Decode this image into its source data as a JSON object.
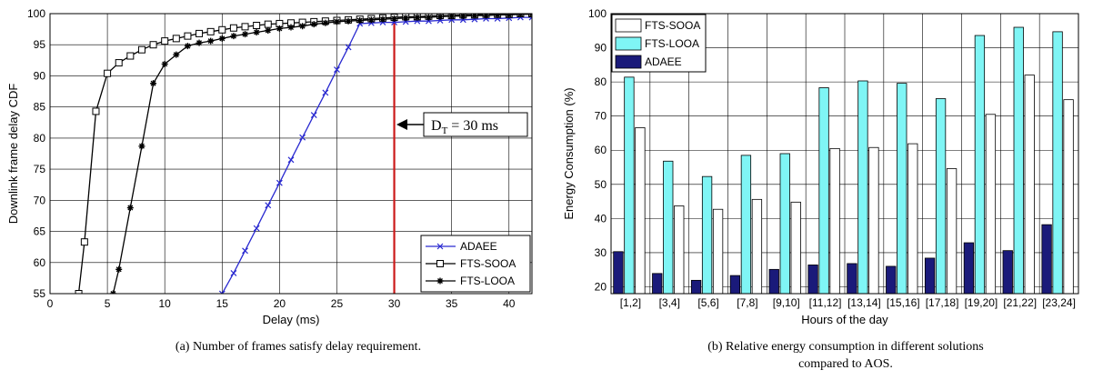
{
  "chart_data": [
    {
      "type": "line",
      "xlabel": "Delay (ms)",
      "ylabel": "Downlink frame delay CDF",
      "xlim": [
        0,
        42
      ],
      "ylim": [
        55,
        100
      ],
      "xticks": [
        0,
        5,
        10,
        15,
        20,
        25,
        30,
        35,
        40
      ],
      "yticks": [
        55,
        60,
        65,
        70,
        75,
        80,
        85,
        90,
        95,
        100
      ],
      "grid": true,
      "legend": "bottom-right",
      "caption": "(a) Number of frames satisfy delay requirement.",
      "annotation": {
        "main": "D",
        "sub": "T",
        "rest": " = 30 ms",
        "x": 30
      },
      "series": [
        {
          "name": "ADAEE",
          "color": "#2a2ad0",
          "marker": "x",
          "x": [
            15,
            16,
            17,
            18,
            19,
            20,
            21,
            22,
            23,
            24,
            25,
            26,
            27,
            28,
            29,
            30,
            31,
            32,
            33,
            34,
            35,
            36,
            37,
            38,
            39,
            40,
            41,
            42
          ],
          "y": [
            55.0,
            58.3,
            61.9,
            65.5,
            69.2,
            72.8,
            76.5,
            80.1,
            83.7,
            87.3,
            91.0,
            94.6,
            98.4,
            98.5,
            98.6,
            98.6,
            98.7,
            98.8,
            98.8,
            98.9,
            99.0,
            99.0,
            99.1,
            99.2,
            99.2,
            99.3,
            99.4,
            99.4
          ]
        },
        {
          "name": "FTS-SOOA",
          "color": "#000000",
          "marker": "square",
          "x": [
            2.5,
            3,
            4,
            5,
            6,
            7,
            8,
            9,
            10,
            11,
            12,
            13,
            14,
            15,
            16,
            17,
            18,
            19,
            20,
            21,
            22,
            23,
            24,
            25,
            26,
            27,
            28,
            29,
            30,
            31,
            32,
            33,
            34,
            35,
            36,
            37,
            38,
            39,
            40,
            41,
            42
          ],
          "y": [
            55.0,
            63.3,
            84.3,
            90.4,
            92.1,
            93.2,
            94.2,
            95.0,
            95.6,
            96.0,
            96.4,
            96.8,
            97.1,
            97.4,
            97.7,
            97.9,
            98.1,
            98.3,
            98.4,
            98.5,
            98.6,
            98.7,
            98.8,
            98.9,
            99.0,
            99.1,
            99.2,
            99.3,
            99.4,
            99.5,
            99.5,
            99.6,
            99.7,
            99.7,
            99.8,
            99.8,
            99.9,
            99.9,
            99.9,
            100.0,
            100.0
          ]
        },
        {
          "name": "FTS-LOOA",
          "color": "#000000",
          "marker": "star",
          "x": [
            5.5,
            6,
            7,
            8,
            9,
            10,
            11,
            12,
            13,
            14,
            15,
            16,
            17,
            18,
            19,
            20,
            21,
            22,
            23,
            24,
            25,
            26,
            27,
            28,
            29,
            30,
            31,
            32,
            33,
            34,
            35,
            36,
            37,
            38,
            39,
            40,
            41,
            42
          ],
          "y": [
            55.0,
            58.9,
            68.8,
            78.7,
            88.8,
            91.9,
            93.4,
            94.8,
            95.3,
            95.6,
            96.0,
            96.4,
            96.7,
            97.0,
            97.3,
            97.6,
            97.8,
            98.0,
            98.3,
            98.5,
            98.7,
            98.8,
            98.9,
            99.0,
            99.1,
            99.2,
            99.3,
            99.4,
            99.4,
            99.5,
            99.6,
            99.6,
            99.7,
            99.7,
            99.8,
            99.8,
            99.9,
            99.9
          ]
        }
      ]
    },
    {
      "type": "bar",
      "xlabel": "Hours of the day",
      "ylabel": "Energy Consumption (%)",
      "ylim": [
        18,
        100
      ],
      "yticks": [
        20,
        30,
        40,
        50,
        60,
        70,
        80,
        90,
        100
      ],
      "grid": true,
      "legend": "top-left",
      "caption_lines": [
        "(b)  Relative energy consumption in different solutions",
        "compared to AOS."
      ],
      "categories": [
        "[1,2]",
        "[3,4]",
        "[5,6]",
        "[7,8]",
        "[9,10]",
        "[11,12]",
        "[13,14]",
        "[15,16]",
        "[17,18]",
        "[19,20]",
        "[21,22]",
        "[23,24]"
      ],
      "legend_order": [
        "FTS-SOOA",
        "FTS-LOOA",
        "ADAEE"
      ],
      "series": [
        {
          "name": "ADAEE",
          "color": "#1a1a7a",
          "values": [
            30.3,
            23.9,
            21.9,
            23.3,
            25.1,
            26.4,
            26.8,
            26.0,
            28.4,
            32.9,
            30.6,
            38.2
          ]
        },
        {
          "name": "FTS-LOOA",
          "color": "#7ff5f5",
          "values": [
            81.4,
            56.8,
            52.3,
            58.5,
            59.0,
            78.3,
            80.3,
            79.6,
            75.1,
            93.6,
            96.0,
            94.7
          ]
        },
        {
          "name": "FTS-SOOA",
          "color": "#ffffff",
          "values": [
            66.6,
            43.7,
            42.7,
            45.6,
            44.8,
            60.5,
            60.8,
            61.9,
            54.6,
            70.5,
            82.0,
            74.8
          ]
        }
      ]
    }
  ]
}
